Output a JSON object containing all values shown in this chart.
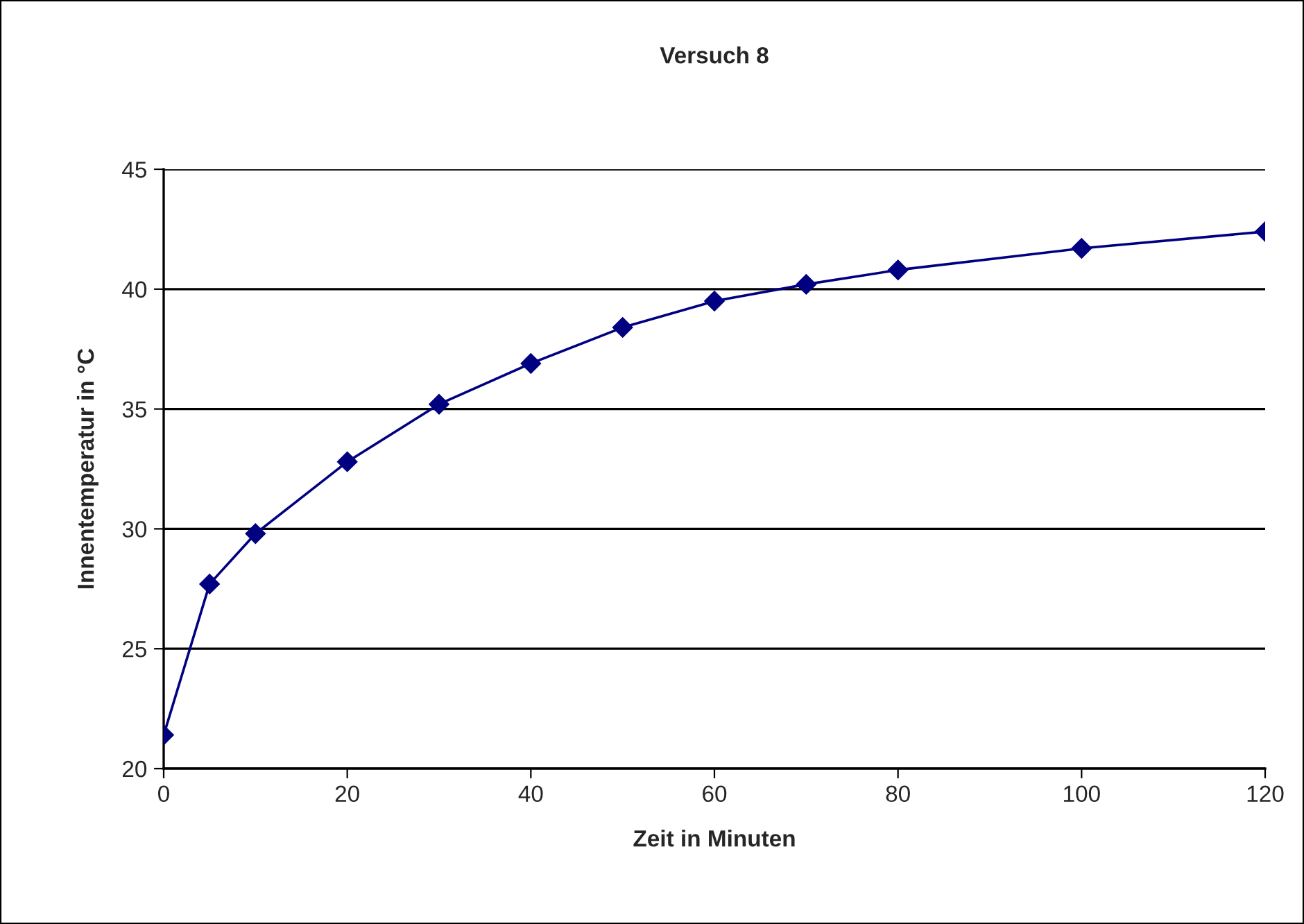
{
  "chart_data": {
    "type": "line",
    "title": "Versuch 8",
    "xlabel": "Zeit in Minuten",
    "ylabel": "Innentemperatur in °C",
    "x": [
      0,
      5,
      10,
      20,
      30,
      40,
      50,
      60,
      70,
      80,
      100,
      120
    ],
    "series": [
      {
        "color": "#000080",
        "values": [
          21.4,
          27.7,
          29.8,
          32.8,
          35.2,
          36.9,
          38.4,
          39.5,
          40.2,
          40.8,
          41.7,
          42.4
        ]
      }
    ],
    "xlim": [
      0,
      120
    ],
    "xticks": [
      0,
      20,
      40,
      60,
      80,
      100,
      120
    ],
    "ylim": [
      20,
      45
    ],
    "yticks": [
      20,
      25,
      30,
      35,
      40,
      45
    ],
    "grid": "y",
    "marker": "diamond",
    "line_style": "solid"
  }
}
